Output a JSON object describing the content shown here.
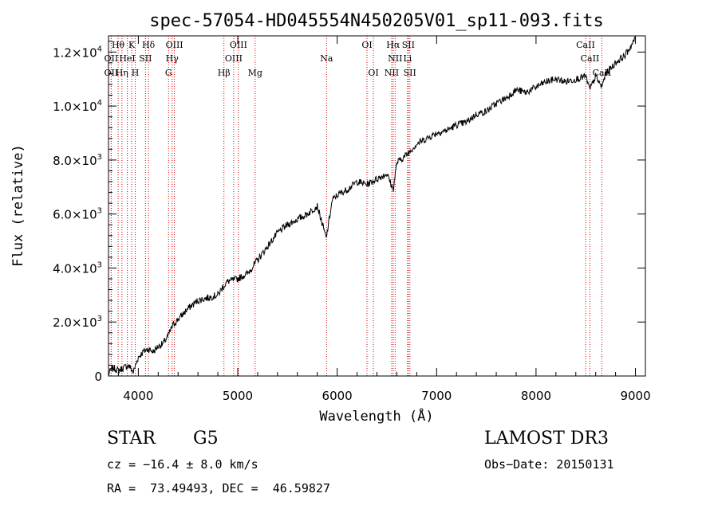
{
  "chart_data": {
    "type": "line",
    "title": "spec-57054-HD045554N450205V01_sp11-093.fits",
    "xlabel": "Wavelength (Å)",
    "ylabel": "Flux (relative)",
    "xlim": [
      3700,
      9100
    ],
    "ylim": [
      0,
      12600
    ],
    "x_ticks": [
      {
        "value": 4000,
        "label": "4000"
      },
      {
        "value": 5000,
        "label": "5000"
      },
      {
        "value": 6000,
        "label": "6000"
      },
      {
        "value": 7000,
        "label": "7000"
      },
      {
        "value": 8000,
        "label": "8000"
      },
      {
        "value": 9000,
        "label": "9000"
      }
    ],
    "y_ticks": [
      {
        "value": 0,
        "mant": "0",
        "exp": ""
      },
      {
        "value": 2000,
        "mant": "2.0×10",
        "exp": "3"
      },
      {
        "value": 4000,
        "mant": "4.0×10",
        "exp": "3"
      },
      {
        "value": 6000,
        "mant": "6.0×10",
        "exp": "3"
      },
      {
        "value": 8000,
        "mant": "8.0×10",
        "exp": "3"
      },
      {
        "value": 10000,
        "mant": "1.0×10",
        "exp": "4"
      },
      {
        "value": 12000,
        "mant": "1.2×10",
        "exp": "4"
      }
    ],
    "series": [
      {
        "name": "flux",
        "x": [
          3700,
          3750,
          3800,
          3850,
          3900,
          3950,
          4000,
          4050,
          4100,
          4150,
          4200,
          4250,
          4300,
          4350,
          4400,
          4450,
          4500,
          4600,
          4700,
          4800,
          4850,
          4900,
          5000,
          5100,
          5200,
          5300,
          5400,
          5500,
          5600,
          5700,
          5800,
          5890,
          5950,
          6000,
          6100,
          6200,
          6300,
          6400,
          6500,
          6563,
          6600,
          6700,
          6800,
          6900,
          7000,
          7100,
          7200,
          7300,
          7400,
          7500,
          7600,
          7700,
          7800,
          7900,
          8000,
          8100,
          8200,
          8300,
          8400,
          8500,
          8540,
          8600,
          8660,
          8700,
          8800,
          8900,
          8950,
          9000
        ],
        "y": [
          100,
          300,
          200,
          300,
          400,
          150,
          700,
          900,
          1000,
          900,
          1100,
          1200,
          1500,
          1900,
          2100,
          2300,
          2500,
          2800,
          2900,
          3000,
          3300,
          3500,
          3600,
          3800,
          4300,
          4800,
          5300,
          5600,
          5800,
          6000,
          6300,
          5100,
          6500,
          6700,
          6900,
          7200,
          7100,
          7300,
          7500,
          6900,
          7900,
          8200,
          8600,
          8800,
          9000,
          9100,
          9300,
          9400,
          9700,
          9800,
          10100,
          10300,
          10600,
          10500,
          10700,
          10900,
          11000,
          10900,
          11000,
          11100,
          10600,
          11100,
          10700,
          11200,
          11600,
          11900,
          12200,
          12500
        ]
      }
    ],
    "line_color": "#000000",
    "marker_color": "#d40000",
    "line_markers": [
      {
        "wl": 3797,
        "row": 0,
        "label": "Hθ"
      },
      {
        "wl": 3727,
        "row": 1,
        "label": "OII"
      },
      {
        "wl": 3727,
        "row": 2,
        "label": "OII"
      },
      {
        "wl": 3835,
        "row": 2,
        "label": "Hη"
      },
      {
        "wl": 3889,
        "row": 1,
        "label": "HeI"
      },
      {
        "wl": 3934,
        "row": 0,
        "label": "K"
      },
      {
        "wl": 3969,
        "row": 2,
        "label": "H"
      },
      {
        "wl": 4072,
        "row": 1,
        "label": "SII"
      },
      {
        "wl": 4102,
        "row": 0,
        "label": "Hδ"
      },
      {
        "wl": 4304,
        "row": 2,
        "label": "G"
      },
      {
        "wl": 4340,
        "row": 1,
        "label": "Hγ"
      },
      {
        "wl": 4363,
        "row": 0,
        "label": "OIII"
      },
      {
        "wl": 4861,
        "row": 2,
        "label": "Hβ"
      },
      {
        "wl": 4959,
        "row": 1,
        "label": "OIII"
      },
      {
        "wl": 5007,
        "row": 0,
        "label": "OIII"
      },
      {
        "wl": 5175,
        "row": 2,
        "label": "Mg"
      },
      {
        "wl": 5893,
        "row": 1,
        "label": "Na"
      },
      {
        "wl": 6300,
        "row": 0,
        "label": "OI"
      },
      {
        "wl": 6364,
        "row": 2,
        "label": "OI"
      },
      {
        "wl": 6548,
        "row": 2,
        "label": "NII"
      },
      {
        "wl": 6563,
        "row": 0,
        "label": "Hα"
      },
      {
        "wl": 6583,
        "row": 1,
        "label": "NII"
      },
      {
        "wl": 6708,
        "row": 1,
        "label": "Li"
      },
      {
        "wl": 6716,
        "row": 0,
        "label": "SII"
      },
      {
        "wl": 6731,
        "row": 2,
        "label": "SII"
      },
      {
        "wl": 8498,
        "row": 0,
        "label": "CaII"
      },
      {
        "wl": 8542,
        "row": 1,
        "label": "CaII"
      },
      {
        "wl": 8662,
        "row": 2,
        "label": "CaII"
      }
    ]
  },
  "info": {
    "class_label": "STAR",
    "subclass": "G5",
    "survey": "LAMOST DR3",
    "redshift": "cz = −16.4 ± 8.0 km/s",
    "obs_date": "Obs−Date: 20150131",
    "coords": "RA =  73.49493, DEC =  46.59827"
  }
}
